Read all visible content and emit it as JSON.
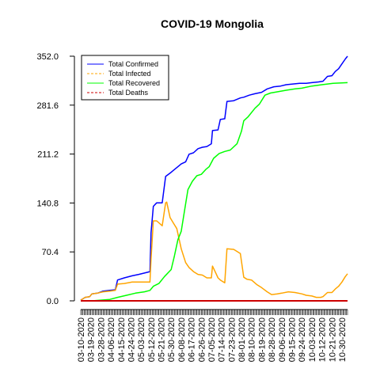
{
  "chart_data": {
    "type": "line",
    "title": "COVID-19 Mongolia",
    "xlabel": "",
    "ylabel": "",
    "ylim": [
      0,
      352
    ],
    "y_ticks": [
      "0.0",
      "70.4",
      "140.8",
      "211.2",
      "281.6",
      "352.0"
    ],
    "y_tick_values": [
      0,
      70.4,
      140.8,
      211.2,
      281.6,
      352.0
    ],
    "x_date_labels": [
      "03-10-2020",
      "03-19-2020",
      "03-28-2020",
      "04-06-2020",
      "04-15-2020",
      "04-24-2020",
      "05-03-2020",
      "05-12-2020",
      "05-21-2020",
      "05-30-2020",
      "06-08-2020",
      "06-17-2020",
      "06-26-2020",
      "07-05-2020",
      "07-14-2020",
      "07-23-2020",
      "08-01-2020",
      "08-10-2020",
      "08-19-2020",
      "08-28-2020",
      "09-06-2020",
      "09-15-2020",
      "09-24-2020",
      "10-03-2020",
      "10-12-2020",
      "10-21-2020",
      "10-30-2020"
    ],
    "x_start": "03-10-2020",
    "x_end": "11-04-2020",
    "legend_position": "top-left",
    "series": [
      {
        "name": "Total Confirmed",
        "color": "#0000ff",
        "dash": "solid",
        "points": [
          [
            "03-10-2020",
            1
          ],
          [
            "03-14-2020",
            5
          ],
          [
            "03-18-2020",
            6
          ],
          [
            "03-20-2020",
            10
          ],
          [
            "03-25-2020",
            11
          ],
          [
            "03-30-2020",
            14
          ],
          [
            "04-05-2020",
            15
          ],
          [
            "04-10-2020",
            16
          ],
          [
            "04-12-2020",
            30
          ],
          [
            "04-18-2020",
            33
          ],
          [
            "04-25-2020",
            36
          ],
          [
            "05-01-2020",
            38
          ],
          [
            "05-06-2020",
            40
          ],
          [
            "05-11-2020",
            42
          ],
          [
            "05-12-2020",
            98
          ],
          [
            "05-14-2020",
            136
          ],
          [
            "05-17-2020",
            141
          ],
          [
            "05-22-2020",
            141
          ],
          [
            "05-25-2020",
            179
          ],
          [
            "05-30-2020",
            185
          ],
          [
            "06-02-2020",
            189
          ],
          [
            "06-05-2020",
            193
          ],
          [
            "06-08-2020",
            197
          ],
          [
            "06-12-2020",
            200
          ],
          [
            "06-15-2020",
            211
          ],
          [
            "06-19-2020",
            213
          ],
          [
            "06-23-2020",
            219
          ],
          [
            "06-27-2020",
            221
          ],
          [
            "07-01-2020",
            222
          ],
          [
            "07-05-2020",
            226
          ],
          [
            "07-06-2020",
            245
          ],
          [
            "07-11-2020",
            246
          ],
          [
            "07-13-2020",
            261
          ],
          [
            "07-17-2020",
            262
          ],
          [
            "07-19-2020",
            287
          ],
          [
            "07-25-2020",
            288
          ],
          [
            "07-31-2020",
            292
          ],
          [
            "08-03-2020",
            293
          ],
          [
            "08-08-2020",
            296
          ],
          [
            "08-13-2020",
            298
          ],
          [
            "08-19-2020",
            300
          ],
          [
            "08-24-2020",
            305
          ],
          [
            "08-30-2020",
            308
          ],
          [
            "09-05-2020",
            309
          ],
          [
            "09-10-2020",
            311
          ],
          [
            "09-16-2020",
            312
          ],
          [
            "09-22-2020",
            313
          ],
          [
            "09-28-2020",
            313
          ],
          [
            "10-03-2020",
            314
          ],
          [
            "10-09-2020",
            315
          ],
          [
            "10-13-2020",
            316
          ],
          [
            "10-17-2020",
            323
          ],
          [
            "10-21-2020",
            324
          ],
          [
            "10-24-2020",
            330
          ],
          [
            "10-27-2020",
            334
          ],
          [
            "10-30-2020",
            341
          ],
          [
            "11-02-2020",
            348
          ],
          [
            "11-04-2020",
            352
          ]
        ]
      },
      {
        "name": "Total Infected",
        "color": "#ffa500",
        "dash": "dashed",
        "points": [
          [
            "03-10-2020",
            1
          ],
          [
            "03-14-2020",
            5
          ],
          [
            "03-18-2020",
            6
          ],
          [
            "03-20-2020",
            10
          ],
          [
            "03-25-2020",
            11
          ],
          [
            "03-30-2020",
            13
          ],
          [
            "04-05-2020",
            14
          ],
          [
            "04-10-2020",
            15
          ],
          [
            "04-12-2020",
            24
          ],
          [
            "04-18-2020",
            25
          ],
          [
            "04-25-2020",
            27
          ],
          [
            "05-01-2020",
            27
          ],
          [
            "05-06-2020",
            27
          ],
          [
            "05-11-2020",
            27
          ],
          [
            "05-12-2020",
            60
          ],
          [
            "05-14-2020",
            115
          ],
          [
            "05-17-2020",
            115
          ],
          [
            "05-22-2020",
            108
          ],
          [
            "05-25-2020",
            141
          ],
          [
            "05-26-2020",
            142
          ],
          [
            "05-29-2020",
            120
          ],
          [
            "06-01-2020",
            112
          ],
          [
            "06-04-2020",
            104
          ],
          [
            "06-08-2020",
            75
          ],
          [
            "06-12-2020",
            55
          ],
          [
            "06-15-2020",
            48
          ],
          [
            "06-19-2020",
            42
          ],
          [
            "06-23-2020",
            38
          ],
          [
            "06-27-2020",
            37
          ],
          [
            "07-01-2020",
            33
          ],
          [
            "07-05-2020",
            33
          ],
          [
            "07-06-2020",
            50
          ],
          [
            "07-09-2020",
            40
          ],
          [
            "07-11-2020",
            33
          ],
          [
            "07-13-2020",
            30
          ],
          [
            "07-17-2020",
            26
          ],
          [
            "07-19-2020",
            75
          ],
          [
            "07-25-2020",
            74
          ],
          [
            "07-31-2020",
            68
          ],
          [
            "08-03-2020",
            34
          ],
          [
            "08-06-2020",
            31
          ],
          [
            "08-10-2020",
            30
          ],
          [
            "08-15-2020",
            23
          ],
          [
            "08-19-2020",
            19
          ],
          [
            "08-24-2020",
            13
          ],
          [
            "08-28-2020",
            9
          ],
          [
            "09-02-2020",
            10
          ],
          [
            "09-06-2020",
            11
          ],
          [
            "09-12-2020",
            13
          ],
          [
            "09-18-2020",
            12
          ],
          [
            "09-24-2020",
            10
          ],
          [
            "09-28-2020",
            8
          ],
          [
            "10-03-2020",
            7
          ],
          [
            "10-07-2020",
            5
          ],
          [
            "10-11-2020",
            5
          ],
          [
            "10-13-2020",
            6
          ],
          [
            "10-17-2020",
            12
          ],
          [
            "10-21-2020",
            12
          ],
          [
            "10-24-2020",
            17
          ],
          [
            "10-27-2020",
            21
          ],
          [
            "10-30-2020",
            27
          ],
          [
            "11-02-2020",
            35
          ],
          [
            "11-04-2020",
            39
          ]
        ]
      },
      {
        "name": "Total Recovered",
        "color": "#00ff00",
        "dash": "solid",
        "points": [
          [
            "03-10-2020",
            0
          ],
          [
            "03-20-2020",
            0
          ],
          [
            "03-28-2020",
            1
          ],
          [
            "04-05-2020",
            2
          ],
          [
            "04-12-2020",
            5
          ],
          [
            "04-20-2020",
            8
          ],
          [
            "04-28-2020",
            11
          ],
          [
            "05-06-2020",
            13
          ],
          [
            "05-11-2020",
            15
          ],
          [
            "05-14-2020",
            21
          ],
          [
            "05-19-2020",
            25
          ],
          [
            "05-24-2020",
            35
          ],
          [
            "05-30-2020",
            45
          ],
          [
            "06-02-2020",
            65
          ],
          [
            "06-05-2020",
            88
          ],
          [
            "06-08-2020",
            100
          ],
          [
            "06-10-2020",
            120
          ],
          [
            "06-14-2020",
            160
          ],
          [
            "06-18-2020",
            172
          ],
          [
            "06-22-2020",
            180
          ],
          [
            "06-26-2020",
            182
          ],
          [
            "06-30-2020",
            189
          ],
          [
            "07-03-2020",
            193
          ],
          [
            "07-07-2020",
            205
          ],
          [
            "07-12-2020",
            212
          ],
          [
            "07-17-2020",
            215
          ],
          [
            "07-22-2020",
            217
          ],
          [
            "07-28-2020",
            226
          ],
          [
            "08-01-2020",
            244
          ],
          [
            "08-03-2020",
            259
          ],
          [
            "08-07-2020",
            265
          ],
          [
            "08-13-2020",
            277
          ],
          [
            "08-17-2020",
            283
          ],
          [
            "08-22-2020",
            296
          ],
          [
            "08-27-2020",
            299
          ],
          [
            "09-03-2020",
            301
          ],
          [
            "09-10-2020",
            303
          ],
          [
            "09-18-2020",
            305
          ],
          [
            "09-24-2020",
            306
          ],
          [
            "10-03-2020",
            309
          ],
          [
            "10-12-2020",
            311
          ],
          [
            "10-22-2020",
            313
          ],
          [
            "11-04-2020",
            314
          ]
        ]
      },
      {
        "name": "Total Deaths",
        "color": "#cd0000",
        "dash": "dashed",
        "points": [
          [
            "03-10-2020",
            0
          ],
          [
            "11-04-2020",
            0
          ]
        ]
      }
    ]
  }
}
